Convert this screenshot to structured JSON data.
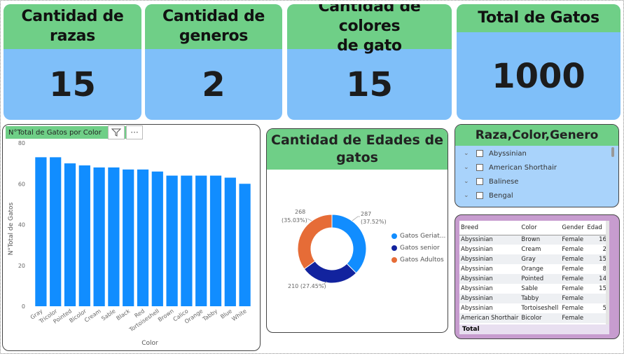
{
  "kpis": [
    {
      "title_line1": "Cantidad de",
      "title_line2": "razas",
      "value": "15"
    },
    {
      "title_line1": "Cantidad de",
      "title_line2": "generos",
      "value": "2"
    },
    {
      "title_line1": "Cantidad de colores",
      "title_line2": "de gato",
      "value": "15"
    },
    {
      "title_line1": "Total de Gatos",
      "title_line2": "",
      "value": "1000"
    }
  ],
  "bar_chart": {
    "title": "N°Total de Gatos por Color",
    "filter_icon": "filter-icon",
    "more_icon": "more-options-icon",
    "more_label": "···"
  },
  "chart_data": [
    {
      "type": "bar",
      "title": "N°Total de Gatos por Color",
      "xlabel": "Color",
      "ylabel": "N°Total de Gatos",
      "ylim": [
        0,
        80
      ],
      "yticks": [
        0,
        20,
        40,
        60,
        80
      ],
      "categories": [
        "Gray",
        "Tricolor",
        "Pointed",
        "Bicolor",
        "Cream",
        "Sable",
        "Black",
        "Red",
        "Tortoiseshell",
        "Brown",
        "Calico",
        "Orange",
        "Tabby",
        "Blue",
        "White"
      ],
      "values": [
        73,
        73,
        70,
        69,
        68,
        68,
        67,
        67,
        66,
        64,
        64,
        64,
        64,
        63,
        60
      ],
      "color": "#118dff",
      "grid": false
    },
    {
      "type": "pie",
      "title": "Cantidad de Edades de gatos",
      "categories": [
        "Gatos Geriat...",
        "Gatos senior",
        "Gatos Adultos"
      ],
      "values": [
        287,
        210,
        268
      ],
      "percent_labels": [
        "287 (37.52%)",
        "210 (27.45%)",
        "268 (35.03%)"
      ],
      "colors": [
        "#118dff",
        "#12239e",
        "#e66c37"
      ],
      "donut": true,
      "legend": "right"
    }
  ],
  "donut": {
    "title_line1": "Cantidad de Edades de",
    "title_line2": "gatos",
    "label_a_value": "287",
    "label_a_pct": "(37.52%)",
    "label_b": "210 (27.45%)",
    "label_c_value": "268",
    "label_c_pct": "(35.03%)"
  },
  "slicer": {
    "title": "Raza,Color,Genero",
    "items": [
      "Abyssinian",
      "American Shorthair",
      "Balinese",
      "Bengal"
    ]
  },
  "table": {
    "headers": [
      "Breed",
      "Color",
      "Gender",
      "Edad"
    ],
    "rows": [
      [
        "Abyssinian",
        "Brown",
        "Female",
        "16"
      ],
      [
        "Abyssinian",
        "Cream",
        "Female",
        "2"
      ],
      [
        "Abyssinian",
        "Gray",
        "Female",
        "15"
      ],
      [
        "Abyssinian",
        "Orange",
        "Female",
        "8"
      ],
      [
        "Abyssinian",
        "Pointed",
        "Female",
        "14"
      ],
      [
        "Abyssinian",
        "Sable",
        "Female",
        "15"
      ],
      [
        "Abyssinian",
        "Tabby",
        "Female",
        ""
      ],
      [
        "Abyssinian",
        "Tortoiseshell",
        "Female",
        "5"
      ],
      [
        "American Shorthair",
        "Bicolor",
        "Female",
        ""
      ]
    ],
    "total_label": "Total"
  },
  "colors": {
    "header_green": "#6fcf87",
    "card_blue": "#7fbff9",
    "bar_blue": "#118dff",
    "table_purple": "#c79ccf"
  }
}
